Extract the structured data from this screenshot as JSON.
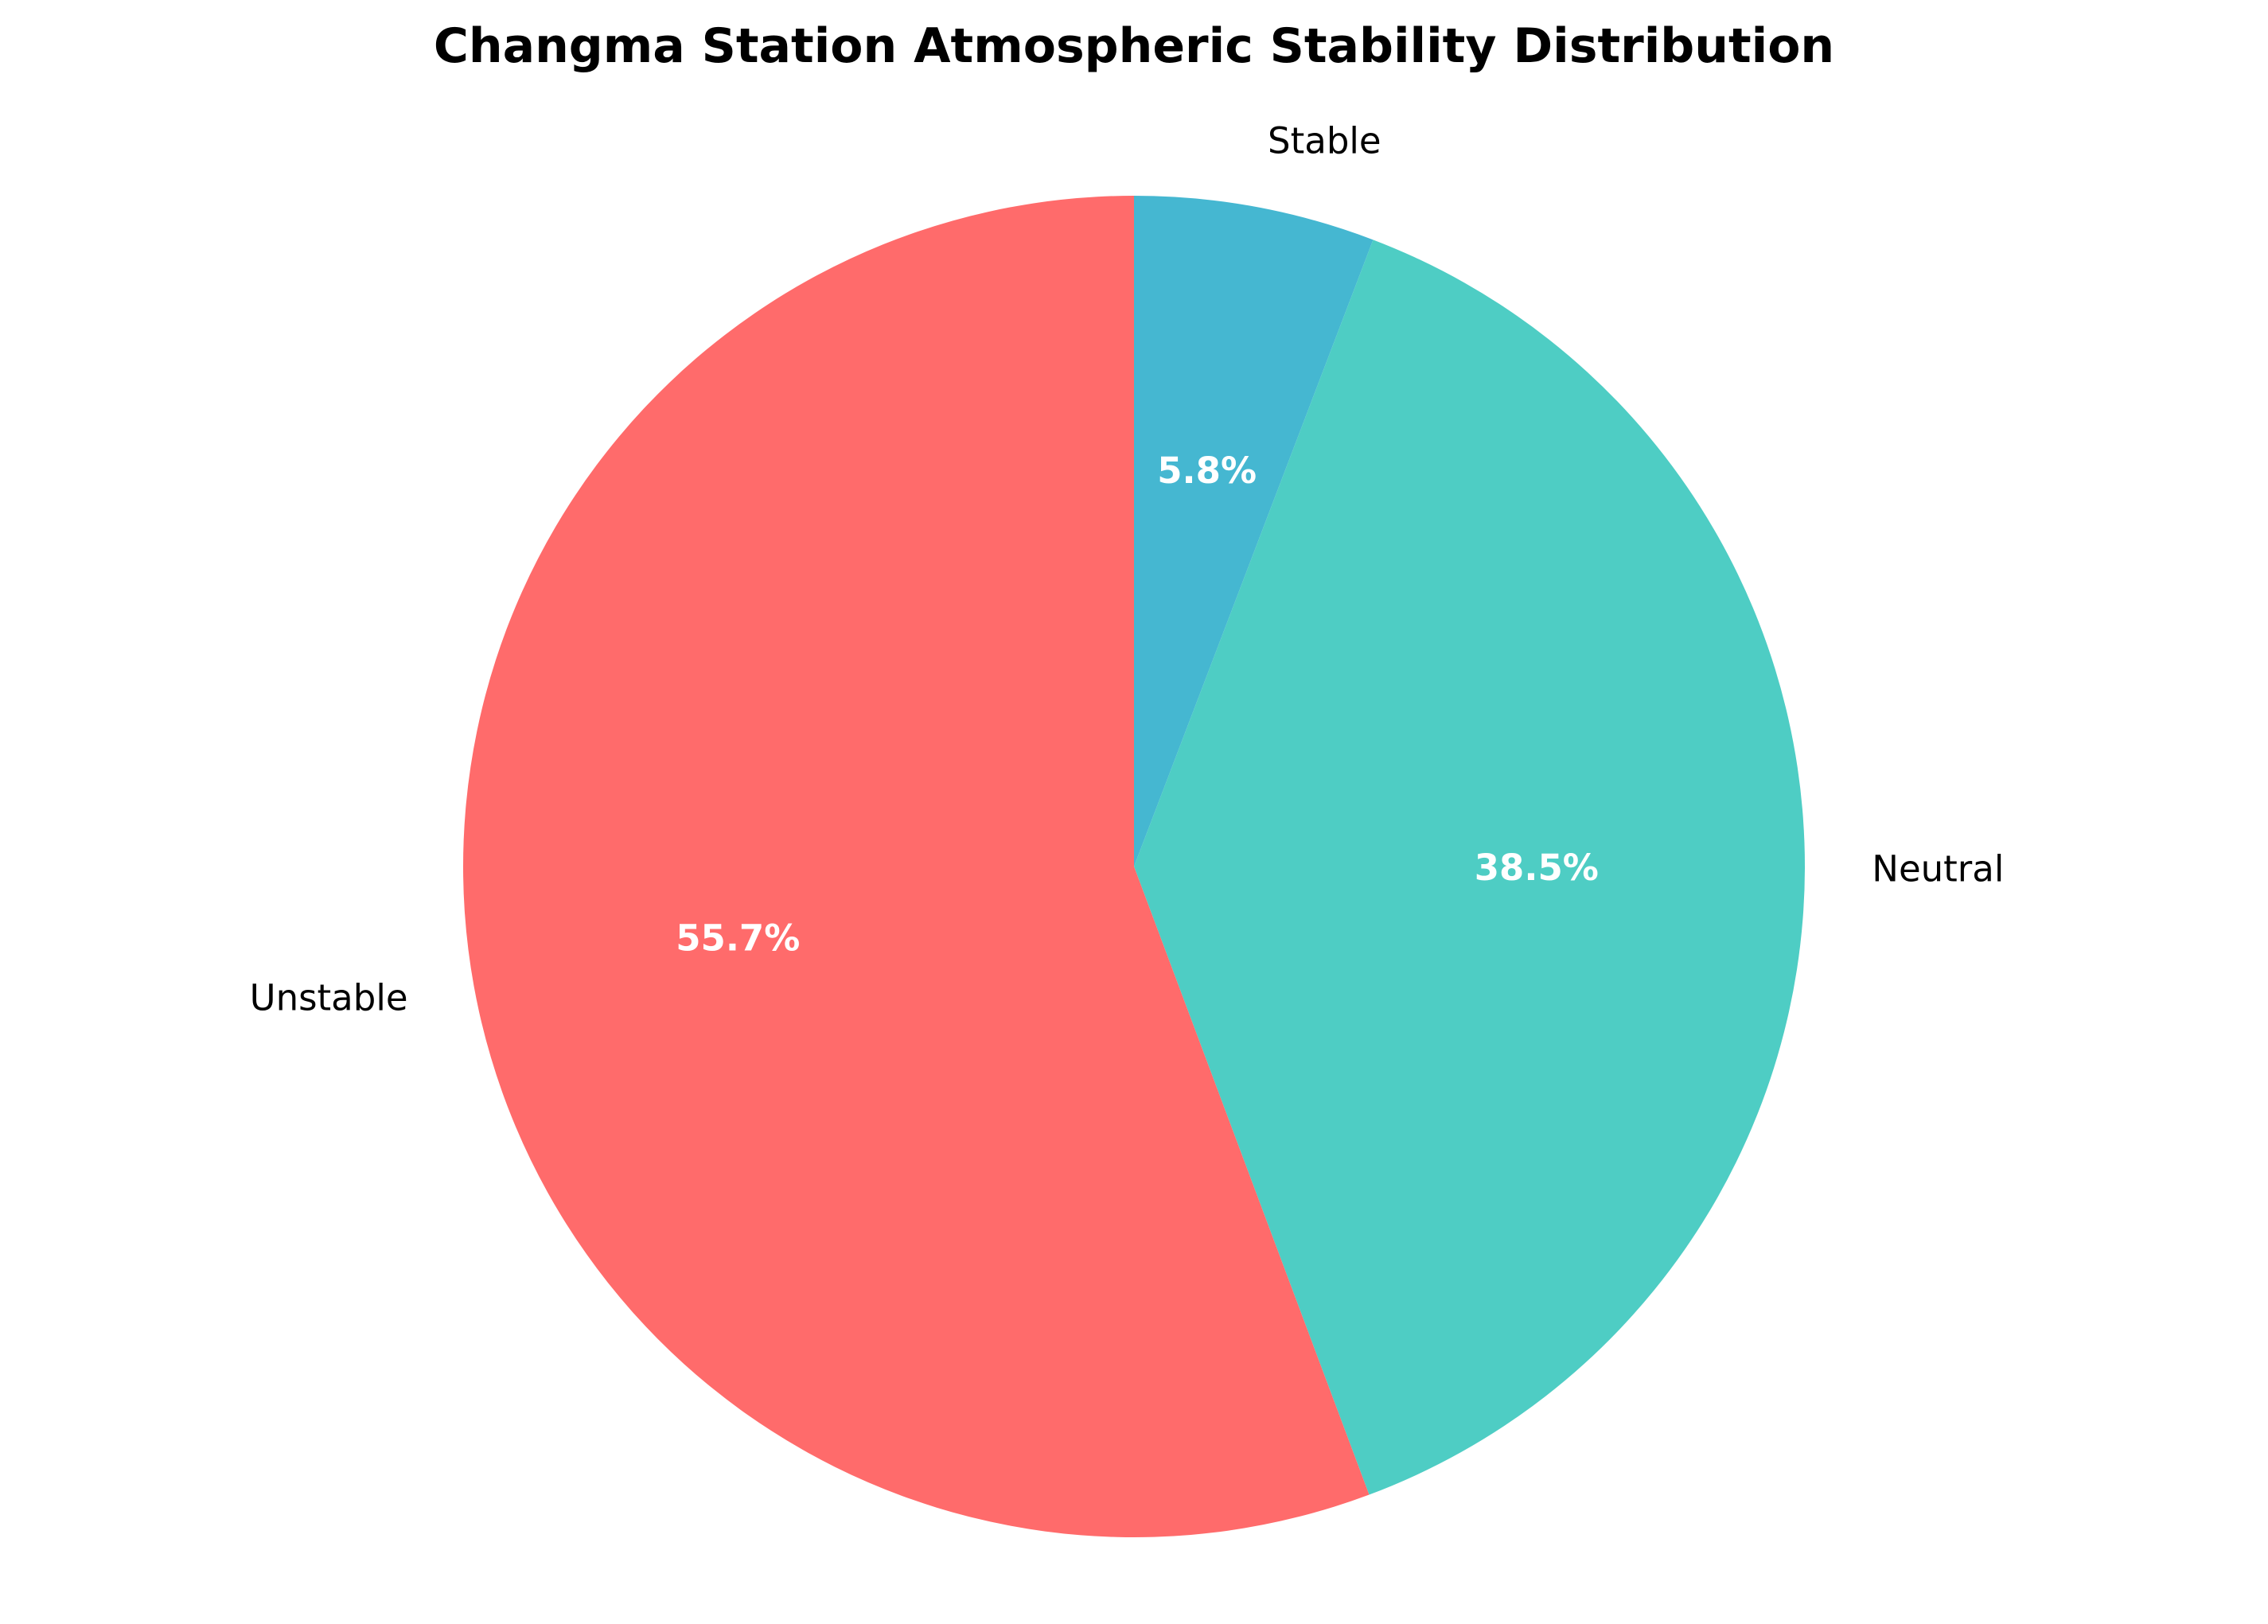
{
  "chart_data": {
    "type": "pie",
    "title": "Changma Station Atmospheric Stability Distribution",
    "start_angle_deg": 90,
    "direction": "clockwise",
    "slices": [
      {
        "label": "Stable",
        "value": 5.8,
        "pct_label": "5.8%",
        "color": "#45B7D1"
      },
      {
        "label": "Neutral",
        "value": 38.5,
        "pct_label": "38.5%",
        "color": "#4ECDC4"
      },
      {
        "label": "Unstable",
        "value": 55.7,
        "pct_label": "55.7%",
        "color": "#FF6B6B"
      }
    ]
  }
}
